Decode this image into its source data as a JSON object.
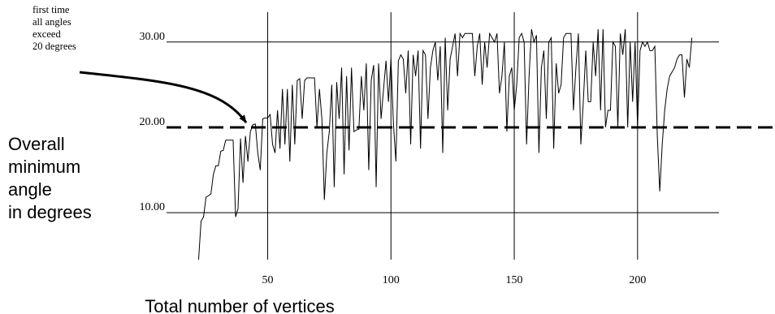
{
  "chart_data": {
    "type": "line",
    "xlabel": "Total number of vertices",
    "ylabel": [
      "Overall",
      "minimum",
      "angle",
      "in degrees"
    ],
    "annotation": [
      "first time",
      "all angles",
      "exceed",
      "20 degrees"
    ],
    "xlim": [
      9,
      233
    ],
    "ylim": [
      4.5,
      33.5
    ],
    "xticks": [
      50,
      100,
      150,
      200
    ],
    "yticks": [
      {
        "value": 10,
        "label": "10.00"
      },
      {
        "value": 20,
        "label": "20.00"
      },
      {
        "value": 30,
        "label": "30.00"
      }
    ],
    "dashed_ytick": 20,
    "grid": true,
    "color": "#000000",
    "x": [
      22,
      23,
      24,
      25,
      26,
      27,
      28,
      29,
      30,
      31,
      32,
      33,
      34,
      35,
      36,
      37,
      38,
      39,
      40,
      41,
      42,
      43,
      44,
      45,
      46,
      47,
      48,
      49,
      50,
      51,
      52,
      53,
      54,
      55,
      56,
      57,
      58,
      59,
      60,
      61,
      62,
      63,
      64,
      65,
      66,
      67,
      68,
      69,
      70,
      71,
      72,
      73,
      74,
      75,
      76,
      77,
      78,
      79,
      80,
      81,
      82,
      83,
      84,
      85,
      86,
      87,
      88,
      89,
      90,
      91,
      92,
      93,
      94,
      95,
      96,
      97,
      98,
      99,
      100,
      101,
      102,
      103,
      104,
      105,
      106,
      107,
      108,
      109,
      110,
      111,
      112,
      113,
      114,
      115,
      116,
      117,
      118,
      119,
      120,
      121,
      122,
      123,
      124,
      125,
      126,
      127,
      128,
      129,
      130,
      131,
      132,
      133,
      134,
      135,
      136,
      137,
      138,
      139,
      140,
      141,
      142,
      143,
      144,
      145,
      146,
      147,
      148,
      149,
      150,
      151,
      152,
      153,
      154,
      155,
      156,
      157,
      158,
      159,
      160,
      161,
      162,
      163,
      164,
      165,
      166,
      167,
      168,
      169,
      170,
      171,
      172,
      173,
      174,
      175,
      176,
      177,
      178,
      179,
      180,
      181,
      182,
      183,
      184,
      185,
      186,
      187,
      188,
      189,
      190,
      191,
      192,
      193,
      194,
      195,
      196,
      197,
      198,
      199,
      200,
      201,
      202,
      203,
      204,
      205,
      206,
      207,
      208,
      209,
      210,
      211,
      212,
      213,
      214,
      215,
      216,
      217,
      218,
      219,
      220,
      221,
      222
    ],
    "values": [
      4.5,
      9,
      9.5,
      11.8,
      12,
      12.2,
      14.5,
      15.5,
      15.5,
      17.2,
      17.3,
      18.5,
      18.5,
      18.5,
      18.5,
      9.5,
      10.5,
      18.7,
      13.5,
      19,
      16,
      19.5,
      20.3,
      20.4,
      17,
      15,
      21,
      21.1,
      21.1,
      21.5,
      18,
      17,
      22,
      17.5,
      24.5,
      18,
      24.5,
      16,
      25,
      18,
      25.5,
      25.7,
      21,
      25.5,
      25.8,
      25.8,
      25.8,
      25.8,
      20,
      24.5,
      21,
      11.5,
      17,
      19.5,
      25,
      13,
      25.3,
      21,
      27,
      14.5,
      26,
      17.3,
      27,
      19.5,
      19.7,
      19.8,
      26,
      22,
      27.5,
      15,
      25.5,
      27.3,
      13,
      27.5,
      21,
      24.5,
      27.8,
      23,
      28,
      20.5,
      16,
      27.8,
      28.5,
      28,
      24,
      29,
      18,
      28.5,
      26,
      29,
      17.5,
      29,
      28.5,
      21,
      27,
      29,
      30,
      25.5,
      29.5,
      17,
      30.5,
      22,
      28,
      29.5,
      31,
      26,
      31,
      30.5,
      31,
      31,
      31,
      31,
      26,
      29.5,
      31,
      25,
      30,
      27,
      31,
      30.5,
      30,
      31,
      24,
      26,
      30,
      19.5,
      26,
      27,
      22,
      25,
      30.5,
      31,
      30,
      18,
      26,
      31.5,
      30,
      30.8,
      17,
      27,
      29,
      21,
      30,
      30.5,
      17.5,
      27.5,
      24,
      25,
      30.5,
      31,
      31,
      31,
      22,
      27,
      31,
      18,
      23,
      29,
      23,
      23,
      30,
      26,
      31.5,
      22,
      31.5,
      20,
      22,
      22,
      30,
      29.5,
      20,
      31,
      28.5,
      31.5,
      20,
      30,
      23,
      30,
      20,
      29,
      30,
      29.5,
      30,
      29,
      29,
      29.5,
      19,
      12.5,
      18,
      22,
      24.5,
      26,
      26.5,
      27,
      28,
      28.5,
      28.5,
      23.5,
      28,
      27,
      30.5
    ]
  }
}
